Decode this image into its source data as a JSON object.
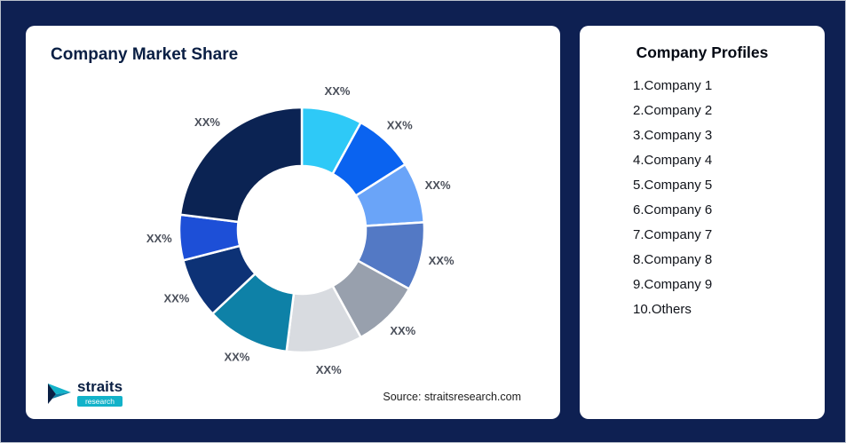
{
  "page": {
    "background": "#0e2052"
  },
  "left_card": {
    "title": "Company Market Share",
    "source": "Source: straitsresearch.com",
    "logo": {
      "name": "straits",
      "sub": "research"
    }
  },
  "right_card": {
    "title": "Company Profiles",
    "items": [
      "1.Company 1",
      "2.Company 2",
      "3.Company 3",
      "4.Company 4",
      "5.Company 5",
      "6.Company 6",
      "7.Company 7",
      "8.Company 8",
      "9.Company 9",
      "10.Others"
    ]
  },
  "chart_data": {
    "type": "pie",
    "subtype": "donut",
    "title": "Company Market Share",
    "start_angle_deg": 0,
    "direction": "clockwise",
    "legend": "none",
    "series_names": [
      "Company 1",
      "Company 2",
      "Company 3",
      "Company 4",
      "Company 5",
      "Company 6",
      "Company 7",
      "Company 8",
      "Company 9",
      "Others"
    ],
    "labels": [
      "XX%",
      "XX%",
      "XX%",
      "XX%",
      "XX%",
      "XX%",
      "XX%",
      "XX%",
      "XX%",
      "XX%"
    ],
    "values": [
      8,
      8,
      8,
      9,
      9,
      10,
      11,
      8,
      6,
      23
    ],
    "colors": [
      "#2ec9f7",
      "#0a63f0",
      "#6aa4f8",
      "#5379c5",
      "#98a0ad",
      "#d8dbe0",
      "#0e81a7",
      "#0d3276",
      "#1d4fd7",
      "#0b2353"
    ]
  }
}
